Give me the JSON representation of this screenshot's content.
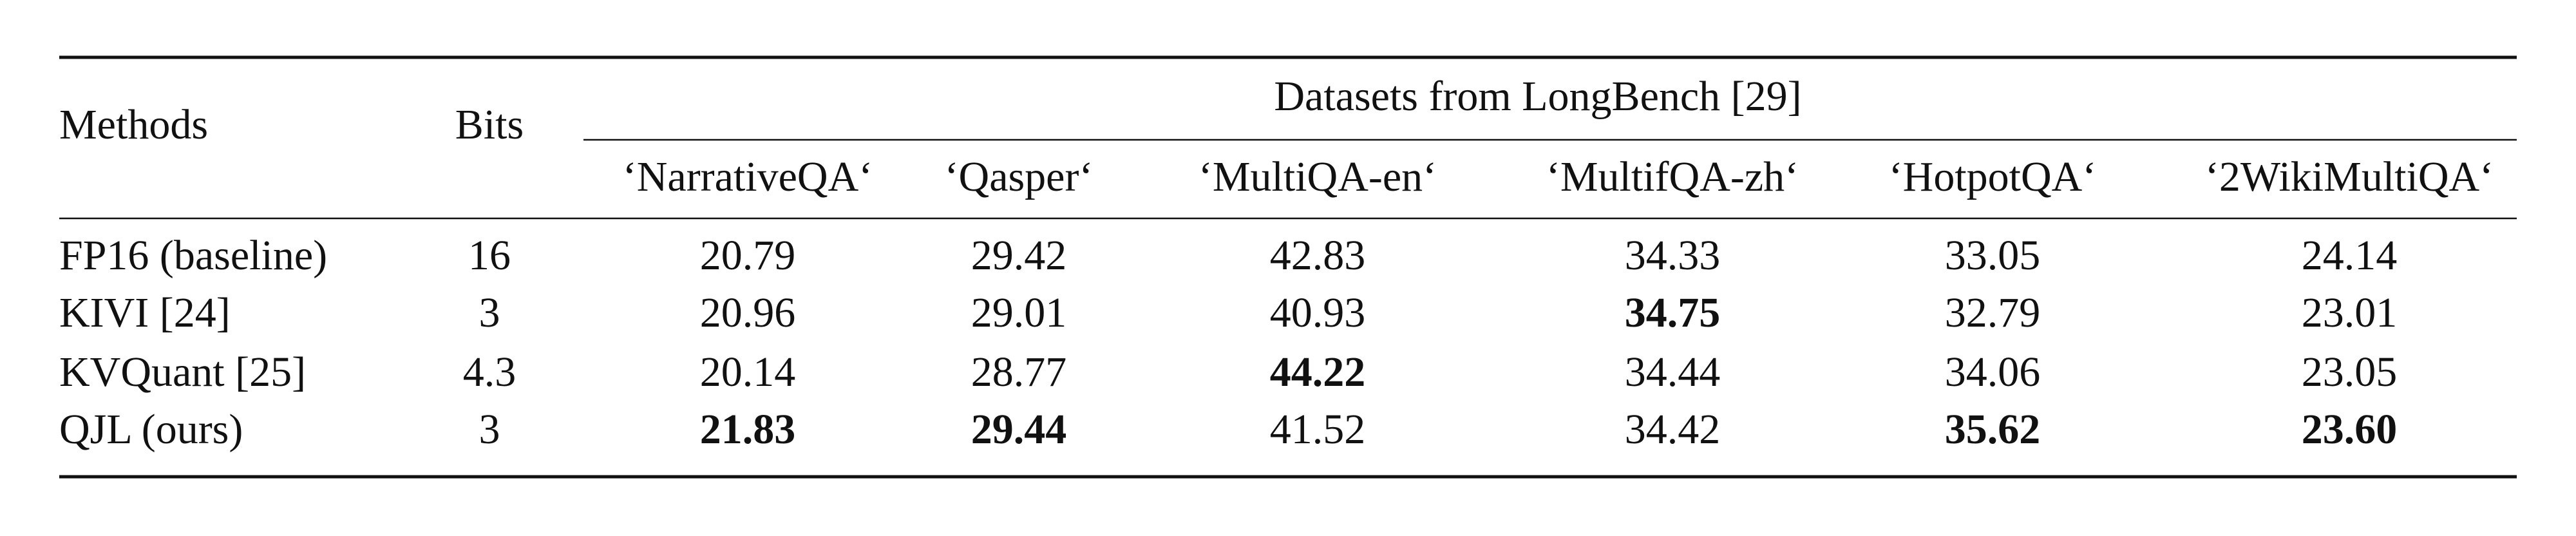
{
  "table": {
    "header": {
      "methods": "Methods",
      "bits": "Bits",
      "group": "Datasets from LongBench [29]",
      "datasets": [
        "‘NarrativeQA‘",
        "‘Qasper‘",
        "‘MultiQA-en‘",
        "‘MultifQA-zh‘",
        "‘HotpotQA‘",
        "‘2WikiMultiQA‘"
      ]
    },
    "rows": [
      {
        "method": "FP16 (baseline)",
        "bits": "16",
        "scores": [
          "20.79",
          "29.42",
          "42.83",
          "34.33",
          "33.05",
          "24.14"
        ],
        "bold": [
          false,
          false,
          false,
          false,
          false,
          false
        ]
      },
      {
        "method": "KIVI [24]",
        "bits": "3",
        "scores": [
          "20.96",
          "29.01",
          "40.93",
          "34.75",
          "32.79",
          "23.01"
        ],
        "bold": [
          false,
          false,
          false,
          true,
          false,
          false
        ]
      },
      {
        "method": "KVQuant [25]",
        "bits": "4.3",
        "scores": [
          "20.14",
          "28.77",
          "44.22",
          "34.44",
          "34.06",
          "23.05"
        ],
        "bold": [
          false,
          false,
          true,
          false,
          false,
          false
        ]
      },
      {
        "method": "QJL (ours)",
        "bits": "3",
        "scores": [
          "21.83",
          "29.44",
          "41.52",
          "34.42",
          "35.62",
          "23.60"
        ],
        "bold": [
          true,
          true,
          false,
          false,
          true,
          true
        ]
      }
    ]
  }
}
